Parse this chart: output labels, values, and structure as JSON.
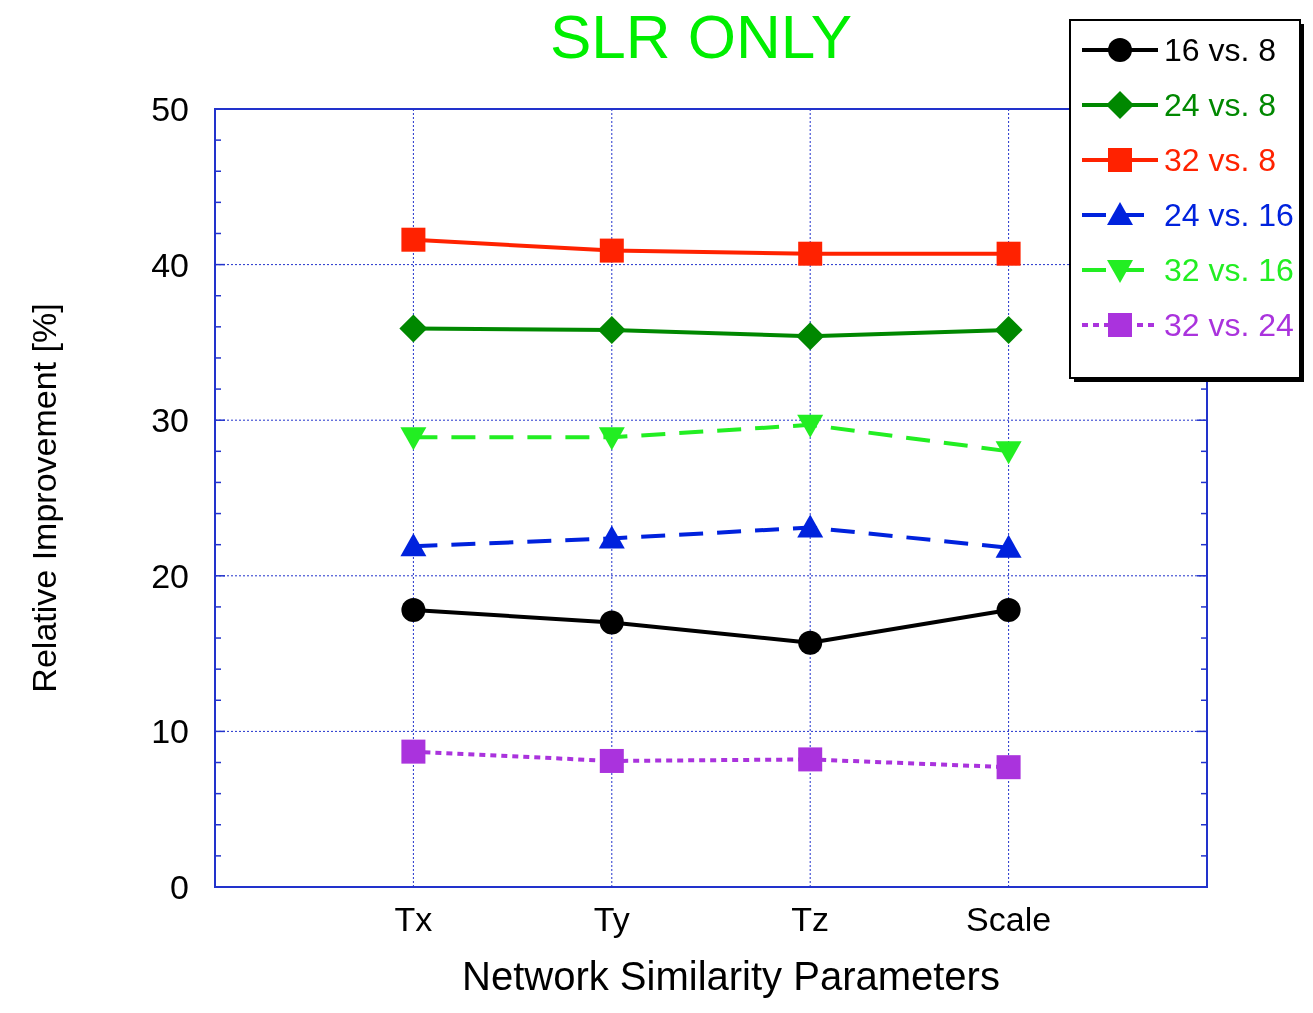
{
  "chart_data": {
    "type": "line",
    "title": "SLR ONLY",
    "xlabel": "Network Similarity Parameters",
    "ylabel": "Relative Improvement [%]",
    "categories": [
      "Tx",
      "Ty",
      "Tz",
      "Scale"
    ],
    "series": [
      {
        "name": "16 vs. 8",
        "color": "#000000",
        "marker": "circle",
        "line_style": "solid",
        "values": [
          17.8,
          17.0,
          15.7,
          17.8
        ]
      },
      {
        "name": "24 vs. 8",
        "color": "#008800",
        "marker": "diamond",
        "line_style": "solid",
        "values": [
          35.9,
          35.8,
          35.4,
          35.8
        ]
      },
      {
        "name": "32 vs. 8",
        "color": "#ff2200",
        "marker": "square",
        "line_style": "solid",
        "values": [
          41.6,
          40.9,
          40.7,
          40.7
        ]
      },
      {
        "name": "24 vs. 16",
        "color": "#0022dd",
        "marker": "triangle",
        "line_style": "dashed",
        "values": [
          21.9,
          22.4,
          23.1,
          21.8
        ]
      },
      {
        "name": "32 vs. 16",
        "color": "#22ee22",
        "marker": "triangle-down",
        "line_style": "dashed",
        "values": [
          28.9,
          28.9,
          29.7,
          28.0
        ]
      },
      {
        "name": "32 vs. 24",
        "color": "#aa33dd",
        "marker": "square",
        "line_style": "dotted",
        "values": [
          8.7,
          8.1,
          8.2,
          7.7
        ]
      }
    ],
    "ylim": [
      0,
      50
    ],
    "yticks": [
      0,
      {
        "value": 2,
        "label": null
      },
      {
        "value": 4,
        "label": null
      },
      {
        "value": 6,
        "label": null
      },
      {
        "value": 8,
        "label": null
      },
      10,
      {
        "value": 12,
        "label": null
      },
      {
        "value": 14,
        "label": null
      },
      {
        "value": 16,
        "label": null
      },
      {
        "value": 18,
        "label": null
      },
      20,
      {
        "value": 22,
        "label": null
      },
      {
        "value": 24,
        "label": null
      },
      {
        "value": 26,
        "label": null
      },
      {
        "value": 28,
        "label": null
      },
      30,
      {
        "value": 32,
        "label": null
      },
      {
        "value": 34,
        "label": null
      },
      {
        "value": 36,
        "label": null
      },
      {
        "value": 38,
        "label": null
      },
      40,
      {
        "value": 42,
        "label": null
      },
      {
        "value": 44,
        "label": null
      },
      {
        "value": 46,
        "label": null
      },
      {
        "value": 48,
        "label": null
      },
      50
    ],
    "grid": true,
    "legend": "top right"
  }
}
